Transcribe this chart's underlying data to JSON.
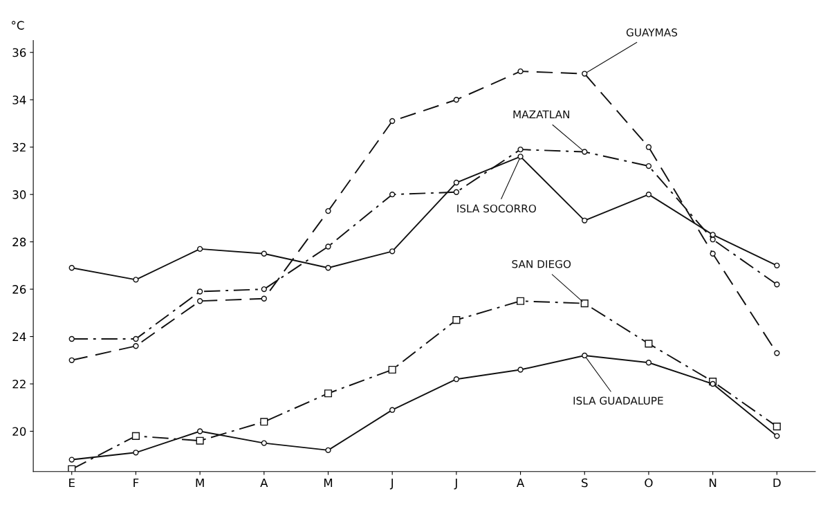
{
  "chart_data": {
    "type": "line",
    "ylabel": "°C",
    "categories": [
      "E",
      "F",
      "M",
      "A",
      "M",
      "J",
      "J",
      "A",
      "S",
      "O",
      "N",
      "D"
    ],
    "ylim": [
      18.3,
      36.5
    ],
    "yticks": [
      20,
      22,
      24,
      26,
      28,
      30,
      32,
      34,
      36
    ],
    "grid": false,
    "series": [
      {
        "name": "GUAYMAS",
        "color": "#111111",
        "line_style": "dashed",
        "marker": "circle",
        "values": [
          23.0,
          23.6,
          25.5,
          25.6,
          29.3,
          33.1,
          34.0,
          35.2,
          35.1,
          32.0,
          27.5,
          23.3
        ]
      },
      {
        "name": "MAZATLAN",
        "color": "#111111",
        "line_style": "dashdot",
        "marker": "circle",
        "values": [
          23.9,
          23.9,
          25.9,
          26.0,
          27.8,
          30.0,
          30.1,
          31.9,
          31.8,
          31.2,
          28.1,
          26.2
        ]
      },
      {
        "name": "ISLA SOCORRO",
        "color": "#111111",
        "line_style": "solid",
        "marker": "circle",
        "values": [
          26.9,
          26.4,
          27.7,
          27.5,
          26.9,
          27.6,
          30.5,
          31.6,
          28.9,
          30.0,
          28.3,
          27.0
        ]
      },
      {
        "name": "SAN DIEGO",
        "color": "#111111",
        "line_style": "dashdot",
        "marker": "square",
        "values": [
          18.4,
          19.8,
          19.6,
          20.4,
          21.6,
          22.6,
          24.7,
          25.5,
          25.4,
          23.7,
          22.1,
          20.2
        ]
      },
      {
        "name": "ISLA GUADALUPE",
        "color": "#111111",
        "line_style": "solid",
        "marker": "circle",
        "values": [
          18.8,
          19.1,
          20.0,
          19.5,
          19.2,
          20.9,
          22.2,
          22.6,
          23.2,
          22.9,
          22.0,
          19.8
        ]
      }
    ]
  }
}
